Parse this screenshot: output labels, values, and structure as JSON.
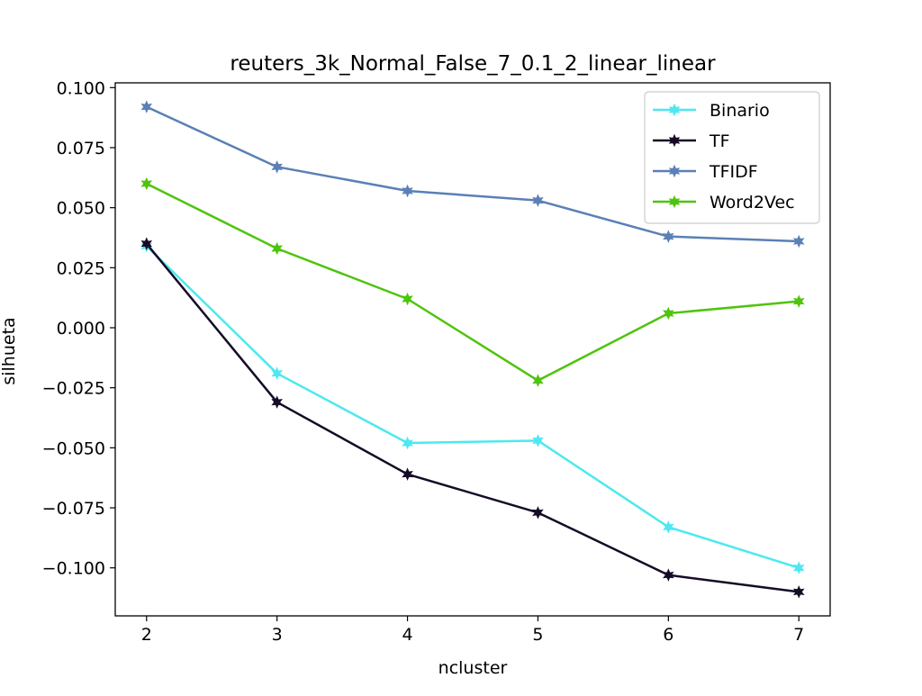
{
  "chart_data": {
    "type": "line",
    "title": "reuters_3k_Normal_False_7_0.1_2_linear_linear",
    "xlabel": "ncluster",
    "ylabel": "silhueta",
    "x": [
      2,
      3,
      4,
      5,
      6,
      7
    ],
    "xlim": [
      1.76,
      7.24
    ],
    "ylim": [
      -0.12,
      0.102
    ],
    "xticks": [
      2,
      3,
      4,
      5,
      6,
      7
    ],
    "xtick_labels": [
      "2",
      "3",
      "4",
      "5",
      "6",
      "7"
    ],
    "yticks": [
      0.1,
      0.075,
      0.05,
      0.025,
      0.0,
      -0.025,
      -0.05,
      -0.075,
      -0.1
    ],
    "ytick_labels": [
      "0.100",
      "0.075",
      "0.050",
      "0.025",
      "0.000",
      "−0.025",
      "−0.050",
      "−0.075",
      "−0.100"
    ],
    "grid": false,
    "legend_position": "top-right",
    "marker": "star",
    "series": [
      {
        "name": "Binario",
        "color": "#4de8f0",
        "values": [
          0.034,
          -0.019,
          -0.048,
          -0.047,
          -0.083,
          -0.1
        ]
      },
      {
        "name": "TF",
        "color": "#160b26",
        "values": [
          0.035,
          -0.031,
          -0.061,
          -0.077,
          -0.103,
          -0.11
        ]
      },
      {
        "name": "TFIDF",
        "color": "#5a80b6",
        "values": [
          0.092,
          0.067,
          0.057,
          0.053,
          0.038,
          0.036
        ]
      },
      {
        "name": "Word2Vec",
        "color": "#4ec40c",
        "values": [
          0.06,
          0.033,
          0.012,
          -0.022,
          0.006,
          0.011
        ]
      }
    ]
  }
}
